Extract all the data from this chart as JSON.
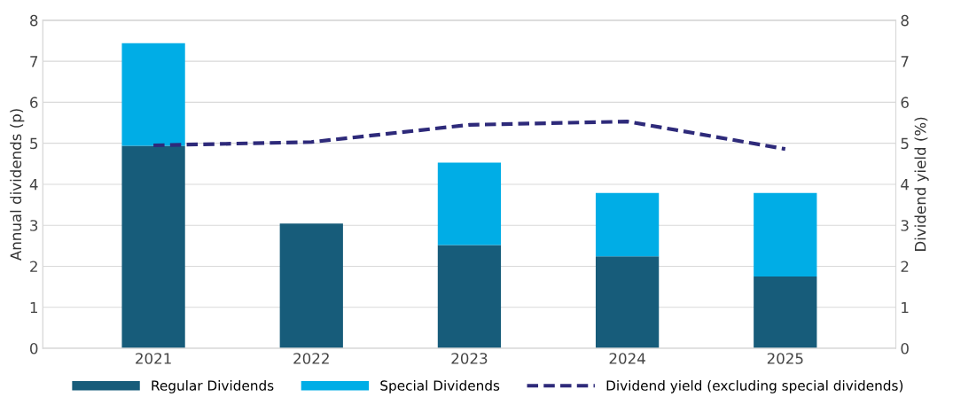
{
  "chart_data": {
    "type": "bar",
    "stacked": true,
    "ylabel": "Annual dividends (p)",
    "y2label": "Dividend yield (%)",
    "categories": [
      "2021",
      "2022",
      "2023",
      "2024",
      "2025"
    ],
    "series": [
      {
        "name": "Regular Dividends",
        "color": "#175c7a",
        "values": [
          4.94,
          3.04,
          2.52,
          2.24,
          1.75
        ]
      },
      {
        "name": "Special Dividends",
        "color": "#00ade6",
        "values": [
          2.5,
          null,
          2.01,
          1.55,
          2.04
        ]
      },
      {
        "name": "Dividend yield (excluding special dividends)",
        "type": "line",
        "axis": "y2",
        "color": "#2e2a7a",
        "line_style": "dashed",
        "values": [
          4.95,
          5.03,
          5.45,
          5.53,
          4.86
        ]
      }
    ],
    "ylim": [
      0,
      8
    ],
    "yticks": [
      0,
      1,
      2,
      3,
      4,
      5,
      6,
      7,
      8
    ],
    "y2lim": [
      0,
      8
    ],
    "y2ticks": [
      0,
      1,
      2,
      3,
      4,
      5,
      6,
      7,
      8
    ],
    "grid": "y",
    "legend": "bottom"
  }
}
